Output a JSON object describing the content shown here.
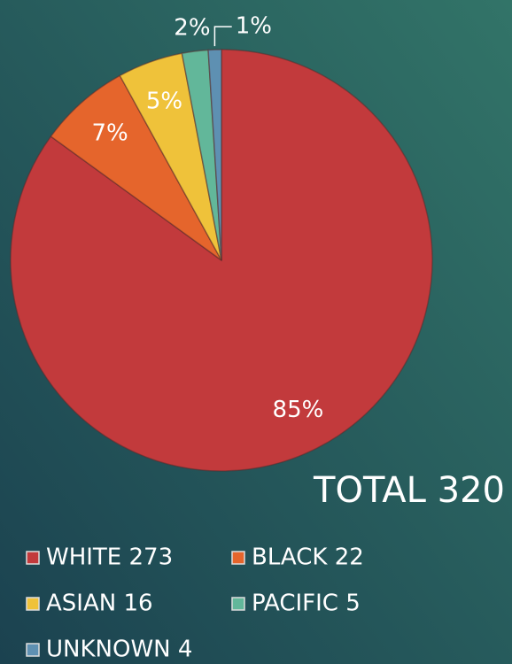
{
  "chart_data": {
    "type": "pie",
    "categories": [
      "WHITE 273",
      "BLACK 22",
      "ASIAN 16",
      "PACIFIC 5",
      "UNKNOWN 4"
    ],
    "values": [
      85,
      7,
      5,
      2,
      1
    ],
    "value_labels": [
      "85%",
      "7%",
      "5%",
      "2%",
      "1%"
    ],
    "colors": [
      "#c23a3c",
      "#e5652c",
      "#efc23a",
      "#62b79a",
      "#5e90b2"
    ],
    "annotation": "TOTAL 320",
    "legend": "bottom"
  }
}
